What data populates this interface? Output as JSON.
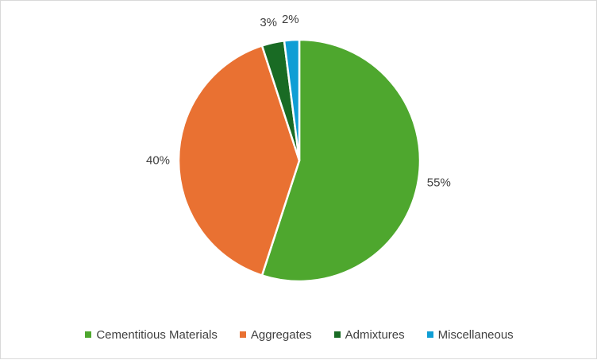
{
  "chart_data": {
    "type": "pie",
    "title": "",
    "categories": [
      "Cementitious Materials",
      "Aggregates",
      "Admixtures",
      "Miscellaneous"
    ],
    "values": [
      55,
      40,
      3,
      2
    ],
    "labels": [
      "55%",
      "40%",
      "3%",
      "2%"
    ],
    "colors": [
      "#4ea72e",
      "#e97132",
      "#196b24",
      "#0f9ed5"
    ],
    "legend_position": "bottom",
    "start_angle": "top",
    "direction": "clockwise"
  }
}
